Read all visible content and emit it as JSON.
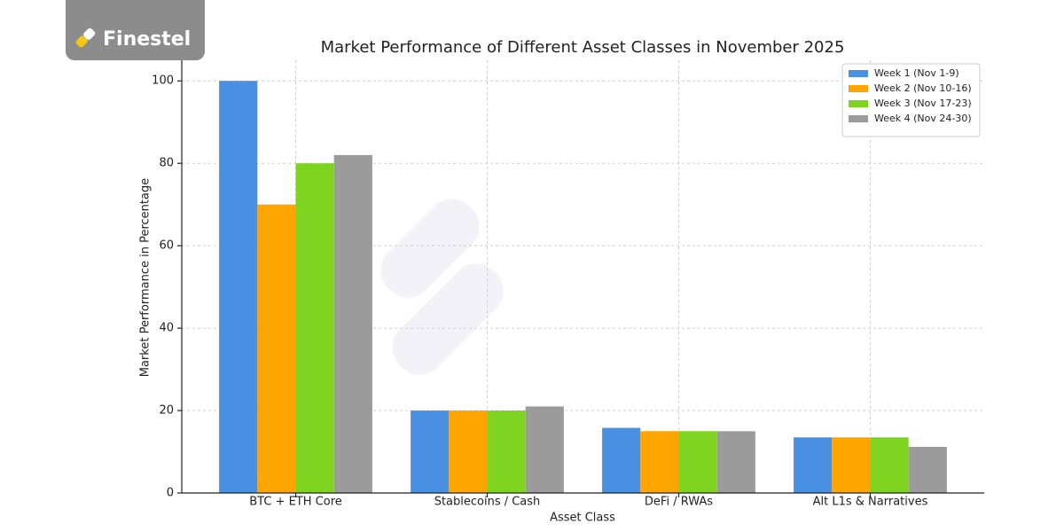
{
  "brand": "Finestel",
  "chart_data": {
    "type": "bar",
    "title": "Market Performance of Different Asset Classes in November 2025",
    "x_label": "Asset Class",
    "y_label": "Market Performance in Percentage",
    "categories": [
      "BTC + ETH Core",
      "Stablecoins / Cash",
      "DeFi / RWAs",
      "Alt L1s & Narratives"
    ],
    "series": [
      {
        "name": "Week 1 (Nov 1-9)",
        "color": "#4a90e2",
        "values": [
          100,
          20,
          15.8,
          13.5
        ]
      },
      {
        "name": "Week 2 (Nov 10-16)",
        "color": "#ffa500",
        "values": [
          70,
          20,
          15,
          13.5
        ]
      },
      {
        "name": "Week 3 (Nov 17-23)",
        "color": "#7ed321",
        "values": [
          80,
          20,
          15,
          13.5
        ]
      },
      {
        "name": "Week 4 (Nov 24-30)",
        "color": "#9b9b9b",
        "values": [
          82,
          21,
          15,
          11.2
        ]
      }
    ],
    "ylim": [
      0,
      105
    ],
    "yticks": [
      0,
      20,
      40,
      60,
      80,
      100
    ],
    "grid": true,
    "legend": "upper right"
  }
}
